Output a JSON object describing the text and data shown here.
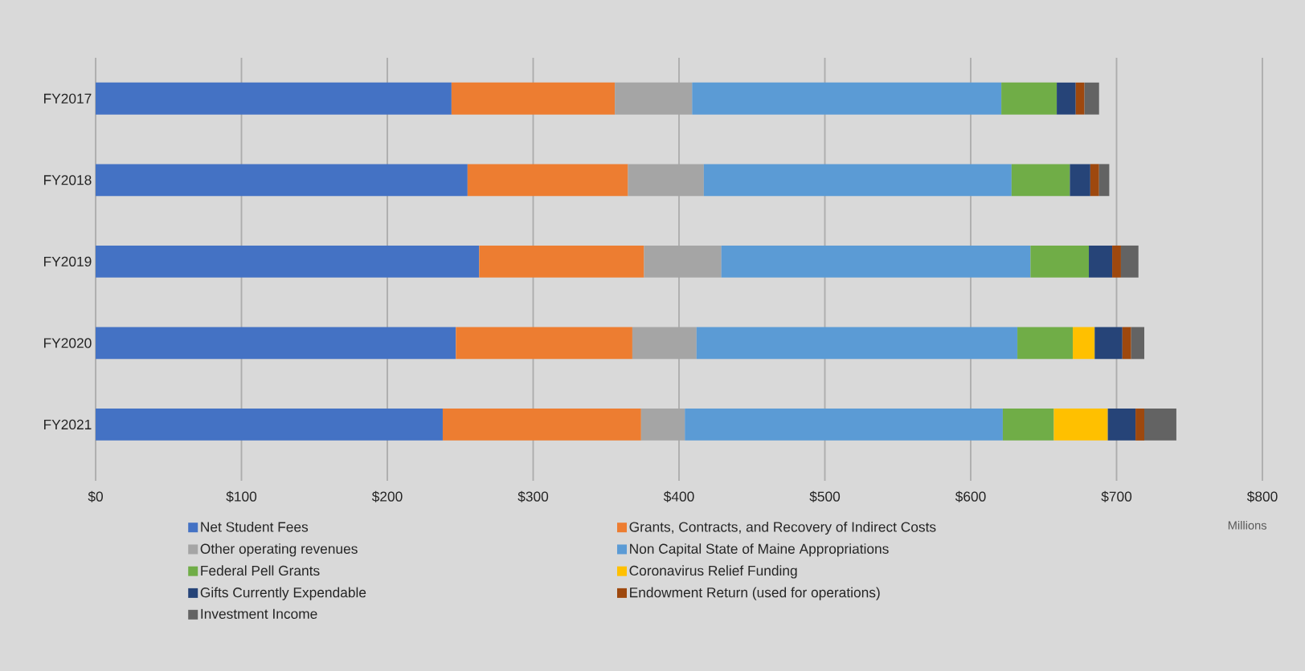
{
  "chart_data": {
    "type": "bar",
    "orientation": "horizontal",
    "stacked": true,
    "categories": [
      "FY2017",
      "FY2018",
      "FY2019",
      "FY2020",
      "FY2021"
    ],
    "series": [
      {
        "name": "Net Student Fees",
        "color": "#4472c4",
        "values": [
          244,
          255,
          263,
          247,
          238
        ]
      },
      {
        "name": "Grants, Contracts, and Recovery of Indirect Costs",
        "color": "#ed7d31",
        "values": [
          112,
          110,
          113,
          121,
          136
        ]
      },
      {
        "name": "Other operating revenues",
        "color": "#a5a5a5",
        "values": [
          53,
          52,
          53,
          44,
          30
        ]
      },
      {
        "name": "Non Capital State of Maine Appropriations",
        "color": "#5b9bd5",
        "values": [
          212,
          211,
          212,
          220,
          218
        ]
      },
      {
        "name": "Federal Pell Grants",
        "color": "#70ad47",
        "values": [
          38,
          40,
          40,
          38,
          35
        ]
      },
      {
        "name": "Coronavirus Relief Funding",
        "color": "#ffc000",
        "values": [
          null,
          null,
          null,
          15,
          37
        ]
      },
      {
        "name": "Gifts Currently Expendable",
        "color": "#264478",
        "values": [
          13,
          14,
          16,
          19,
          19
        ]
      },
      {
        "name": "Endowment Return (used for operations)",
        "color": "#9e480e",
        "values": [
          6,
          6,
          6,
          6,
          6
        ]
      },
      {
        "name": "Investment Income",
        "color": "#636363",
        "values": [
          10,
          7,
          12,
          9,
          22
        ]
      }
    ],
    "xlim": [
      0,
      800
    ],
    "xticks": [
      {
        "value": 0,
        "label": "$0"
      },
      {
        "value": 100,
        "label": "$100"
      },
      {
        "value": 200,
        "label": "$200"
      },
      {
        "value": 300,
        "label": "$300"
      },
      {
        "value": 400,
        "label": "$400"
      },
      {
        "value": 500,
        "label": "$500"
      },
      {
        "value": 600,
        "label": "$600"
      },
      {
        "value": 700,
        "label": "$700"
      },
      {
        "value": 800,
        "label": "$800"
      }
    ],
    "xlabel": "Millions",
    "grid": "x",
    "legend": "bottom"
  }
}
